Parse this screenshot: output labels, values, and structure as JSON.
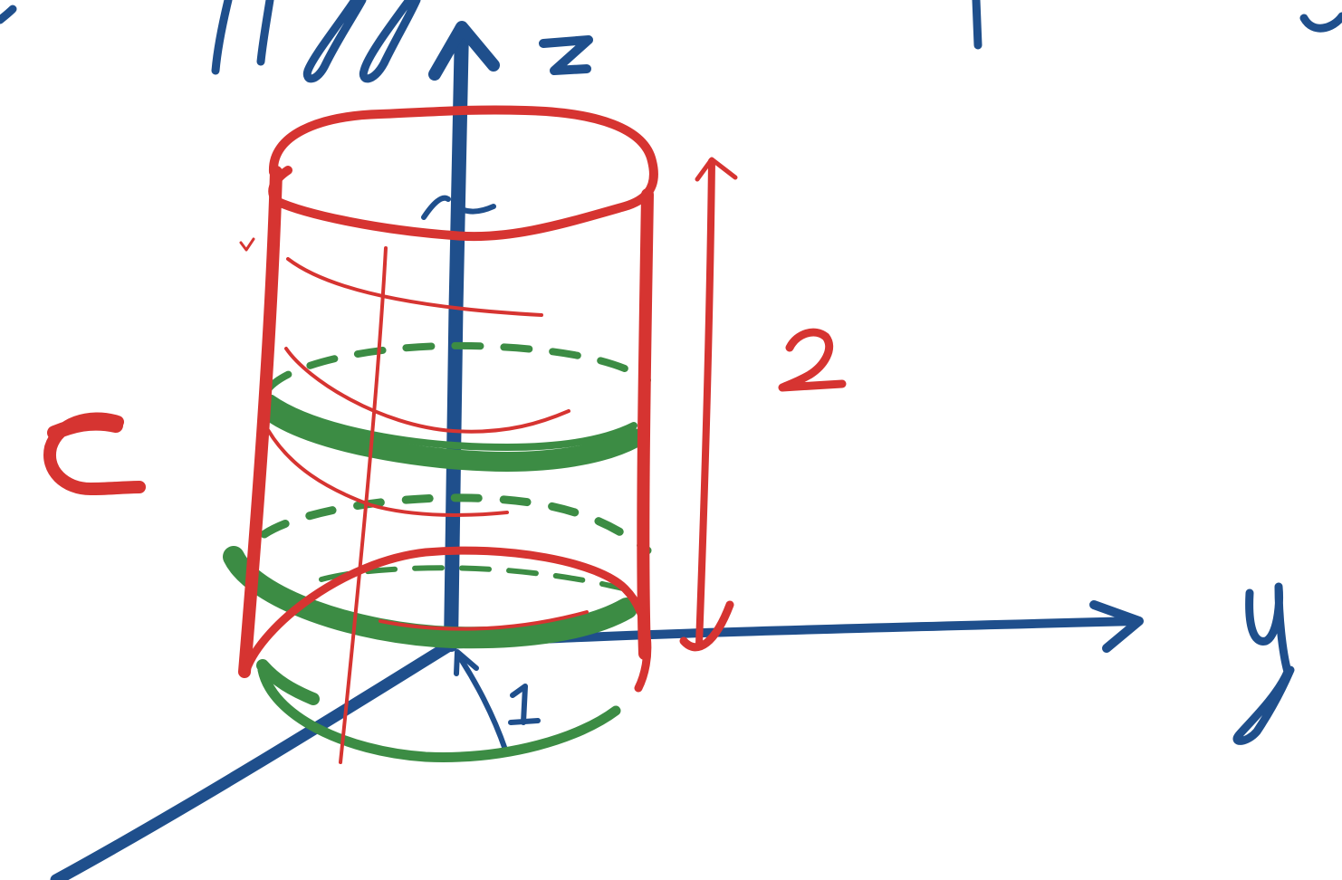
{
  "labels": {
    "z_axis": "z",
    "y_axis": "y",
    "surface": "C",
    "height": "2",
    "radius": "1"
  },
  "colors": {
    "axis": "#1f4f8c",
    "surface": "#d63431",
    "strip": "#3c8c44",
    "background": "#ffffff"
  }
}
